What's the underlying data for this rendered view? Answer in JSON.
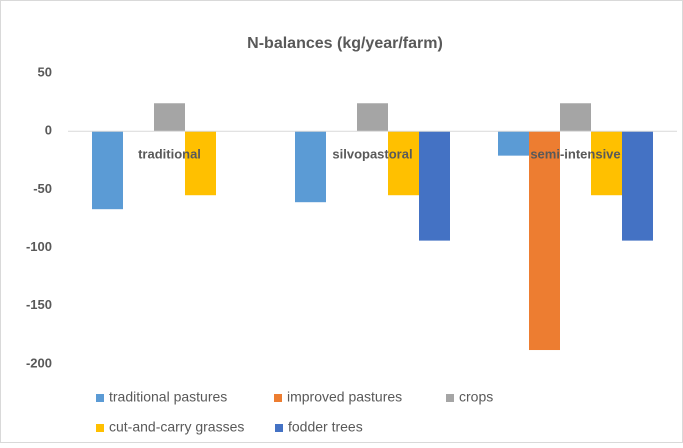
{
  "chart_data": {
    "type": "bar",
    "title": "N-balances (kg/year/farm)",
    "categories": [
      "traditional",
      "silvopastoral",
      "semi-intensive"
    ],
    "series": [
      {
        "name": "traditional pastures",
        "color": "#5b9bd5",
        "values": [
          -67,
          -61,
          -21
        ]
      },
      {
        "name": "improved pastures",
        "color": "#ed7d31",
        "values": [
          null,
          null,
          -188
        ]
      },
      {
        "name": "crops",
        "color": "#a5a5a5",
        "values": [
          24,
          24,
          24
        ]
      },
      {
        "name": "cut-and-carry grasses",
        "color": "#ffc000",
        "values": [
          -55,
          -55,
          -55
        ]
      },
      {
        "name": "fodder trees",
        "color": "#4472c4",
        "values": [
          null,
          -94,
          -94
        ]
      }
    ],
    "ylim": [
      -200,
      50
    ],
    "yticks": [
      -200,
      -150,
      -100,
      -50,
      0,
      50
    ],
    "grid": false
  }
}
